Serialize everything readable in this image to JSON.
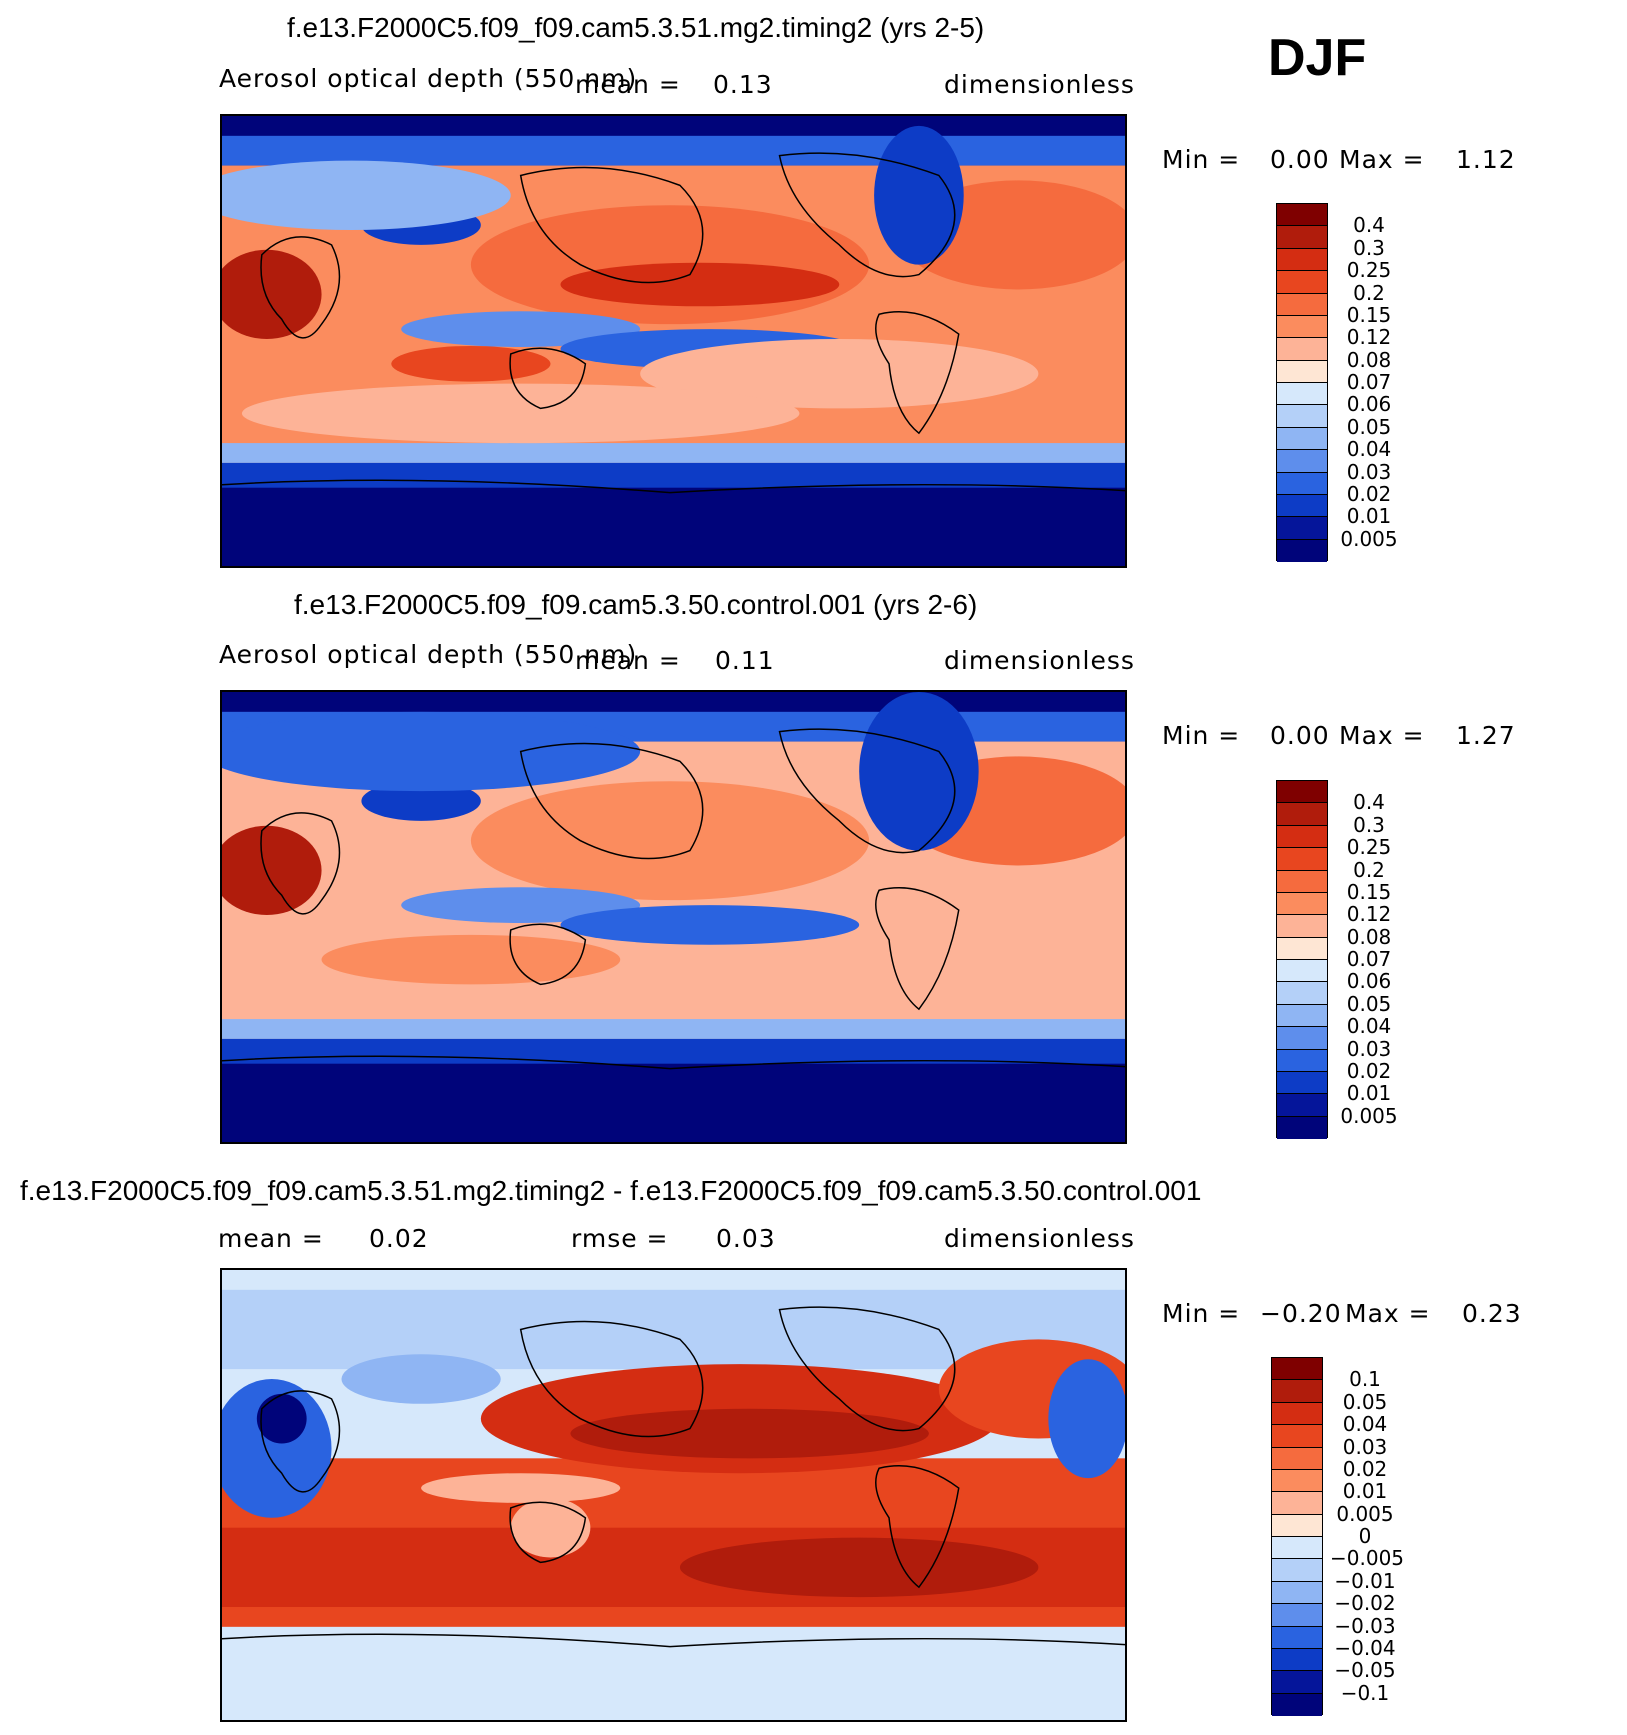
{
  "season": "DJF",
  "panels": [
    {
      "title": "f.e13.F2000C5.f09_f09.cam5.3.51.mg2.timing2 (yrs 2-5)",
      "variable": "Aerosol optical depth (550 nm)",
      "mean_label": "mean =",
      "mean_value": "0.13",
      "units": "dimensionless",
      "min_label": "Min =",
      "min_value": "0.00",
      "max_label": "Max =",
      "max_value": "1.12"
    },
    {
      "title": "f.e13.F2000C5.f09_f09.cam5.3.50.control.001 (yrs 2-6)",
      "variable": "Aerosol optical depth (550 nm)",
      "mean_label": "mean =",
      "mean_value": "0.11",
      "units": "dimensionless",
      "min_label": "Min =",
      "min_value": "0.00",
      "max_label": "Max =",
      "max_value": "1.27"
    },
    {
      "title": "f.e13.F2000C5.f09_f09.cam5.3.51.mg2.timing2 - f.e13.F2000C5.f09_f09.cam5.3.50.control.001",
      "mean_label": "mean =",
      "mean_value": "0.02",
      "rmse_label": "rmse =",
      "rmse_value": "0.03",
      "units": "dimensionless",
      "min_label": "Min =",
      "min_value": "−0.20",
      "max_label": "Max =",
      "max_value": "0.23"
    }
  ],
  "chart_data": [
    {
      "type": "heatmap",
      "title": "f.e13.F2000C5.f09_f09.cam5.3.51.mg2.timing2 (yrs 2-5)",
      "field": "Aerosol optical depth (550 nm)",
      "units": "dimensionless",
      "mean": 0.13,
      "min": 0.0,
      "max": 1.12,
      "colorbar_levels": [
        "0.4",
        "0.3",
        "0.25",
        "0.2",
        "0.15",
        "0.12",
        "0.08",
        "0.07",
        "0.06",
        "0.05",
        "0.04",
        "0.03",
        "0.02",
        "0.01",
        "0.005"
      ],
      "colorbar_colors": [
        "#7f0000",
        "#b01c0c",
        "#d42d12",
        "#e8461f",
        "#f56b3e",
        "#fb8c5e",
        "#fdb397",
        "#fee6d4",
        "#d6e8fb",
        "#b4d0f8",
        "#8fb5f3",
        "#5e8eec",
        "#2a63e0",
        "#0d3cc6",
        "#05159a",
        "#00047a"
      ]
    },
    {
      "type": "heatmap",
      "title": "f.e13.F2000C5.f09_f09.cam5.3.50.control.001 (yrs 2-6)",
      "field": "Aerosol optical depth (550 nm)",
      "units": "dimensionless",
      "mean": 0.11,
      "min": 0.0,
      "max": 1.27,
      "colorbar_levels": [
        "0.4",
        "0.3",
        "0.25",
        "0.2",
        "0.15",
        "0.12",
        "0.08",
        "0.07",
        "0.06",
        "0.05",
        "0.04",
        "0.03",
        "0.02",
        "0.01",
        "0.005"
      ],
      "colorbar_colors": [
        "#7f0000",
        "#b01c0c",
        "#d42d12",
        "#e8461f",
        "#f56b3e",
        "#fb8c5e",
        "#fdb397",
        "#fee6d4",
        "#d6e8fb",
        "#b4d0f8",
        "#8fb5f3",
        "#5e8eec",
        "#2a63e0",
        "#0d3cc6",
        "#05159a",
        "#00047a"
      ]
    },
    {
      "type": "heatmap",
      "title": "f.e13.F2000C5.f09_f09.cam5.3.51.mg2.timing2 - f.e13.F2000C5.f09_f09.cam5.3.50.control.001",
      "units": "dimensionless",
      "mean": 0.02,
      "rmse": 0.03,
      "min": -0.2,
      "max": 0.23,
      "colorbar_levels": [
        "0.1",
        "0.05",
        "0.04",
        "0.03",
        "0.02",
        "0.01",
        "0.005",
        "0",
        "−0.005",
        "−0.01",
        "−0.02",
        "−0.03",
        "−0.04",
        "−0.05",
        "−0.1"
      ],
      "colorbar_colors": [
        "#7f0000",
        "#b01c0c",
        "#d42d12",
        "#e8461f",
        "#f56b3e",
        "#fb8c5e",
        "#fdb397",
        "#fee6d4",
        "#d6e8fb",
        "#b4d0f8",
        "#8fb5f3",
        "#5e8eec",
        "#2a63e0",
        "#0d3cc6",
        "#05159a",
        "#00047a"
      ]
    }
  ]
}
